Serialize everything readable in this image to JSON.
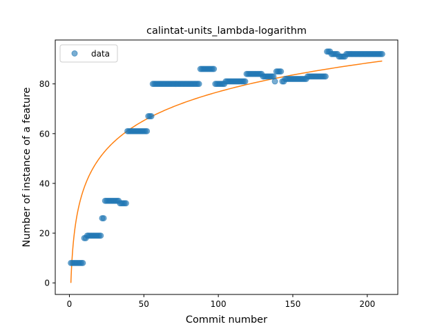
{
  "chart_data": {
    "type": "scatter",
    "title": "calintat-units_lambda-logarithm",
    "xlabel": "Commit number",
    "ylabel": "Number of instance of a feature",
    "xlim": [
      -9.5,
      220.5
    ],
    "ylim": [
      -4.65,
      97.65
    ],
    "xticks": [
      0,
      50,
      100,
      150,
      200
    ],
    "yticks": [
      0,
      20,
      40,
      60,
      80
    ],
    "legend": {
      "position": "upper-left",
      "label": "data"
    },
    "colors": {
      "data": "#1f77b4",
      "fit": "#ff7f0e"
    },
    "series": [
      {
        "name": "data",
        "kind": "scatter",
        "segments": [
          {
            "from": 1,
            "to": 9,
            "y": 8
          },
          {
            "from": 10,
            "to": 11,
            "y": 18
          },
          {
            "from": 12,
            "to": 21,
            "y": 19
          },
          {
            "from": 22,
            "to": 23,
            "y": 26
          },
          {
            "from": 24,
            "to": 33,
            "y": 33
          },
          {
            "from": 34,
            "to": 38,
            "y": 32
          },
          {
            "from": 39,
            "to": 52,
            "y": 61
          },
          {
            "from": 53,
            "to": 55,
            "y": 67
          },
          {
            "from": 56,
            "to": 87,
            "y": 80
          },
          {
            "from": 88,
            "to": 97,
            "y": 86
          },
          {
            "from": 98,
            "to": 104,
            "y": 80
          },
          {
            "from": 105,
            "to": 118,
            "y": 81
          },
          {
            "from": 119,
            "to": 129,
            "y": 84
          },
          {
            "from": 130,
            "to": 137,
            "y": 83
          },
          {
            "from": 138,
            "to": 138,
            "y": 81
          },
          {
            "from": 139,
            "to": 142,
            "y": 85
          },
          {
            "from": 143,
            "to": 144,
            "y": 81
          },
          {
            "from": 145,
            "to": 159,
            "y": 82
          },
          {
            "from": 160,
            "to": 172,
            "y": 83
          },
          {
            "from": 173,
            "to": 175,
            "y": 93
          },
          {
            "from": 176,
            "to": 180,
            "y": 92
          },
          {
            "from": 181,
            "to": 185,
            "y": 91
          },
          {
            "from": 186,
            "to": 210,
            "y": 92
          }
        ]
      },
      {
        "name": "fit",
        "kind": "line",
        "model": "logarithmic",
        "x_range": [
          1,
          210
        ],
        "y_start": 0,
        "y_end": 89.2
      }
    ]
  }
}
